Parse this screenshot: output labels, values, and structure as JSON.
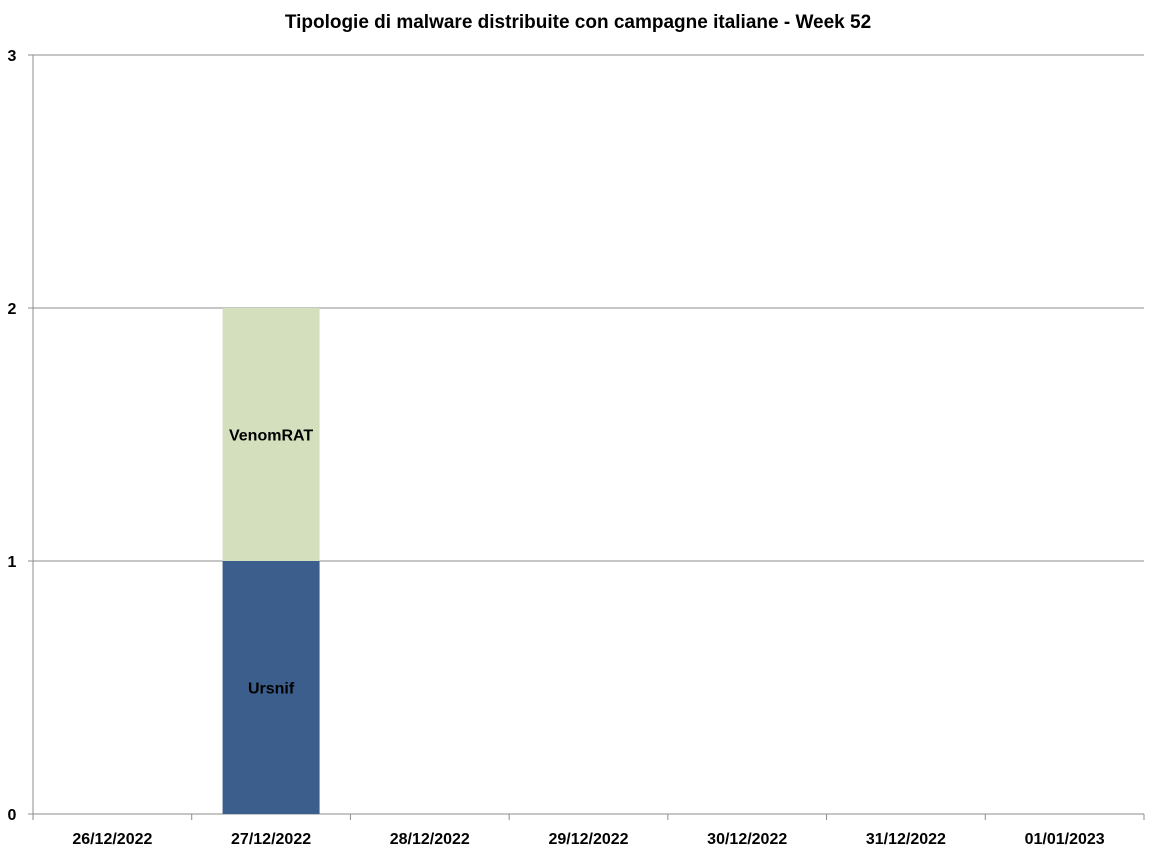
{
  "chart_data": {
    "type": "bar",
    "stacked": true,
    "title": "Tipologie  di malware distribuite con campagne italiane - Week 52",
    "xlabel": "",
    "ylabel": "",
    "categories": [
      "26/12/2022",
      "27/12/2022",
      "28/12/2022",
      "29/12/2022",
      "30/12/2022",
      "31/12/2022",
      "01/01/2023"
    ],
    "series": [
      {
        "name": "Ursnif",
        "color": "#3b5e8c",
        "values": [
          0,
          1,
          0,
          0,
          0,
          0,
          0
        ]
      },
      {
        "name": "VenomRAT",
        "color": "#d3dfbd",
        "values": [
          0,
          1,
          0,
          0,
          0,
          0,
          0
        ]
      }
    ],
    "ylim": [
      0,
      3
    ],
    "yticks": [
      0,
      1,
      2,
      3
    ],
    "grid": true,
    "legend": "none",
    "data_labels": "series-name-inside-segment"
  }
}
